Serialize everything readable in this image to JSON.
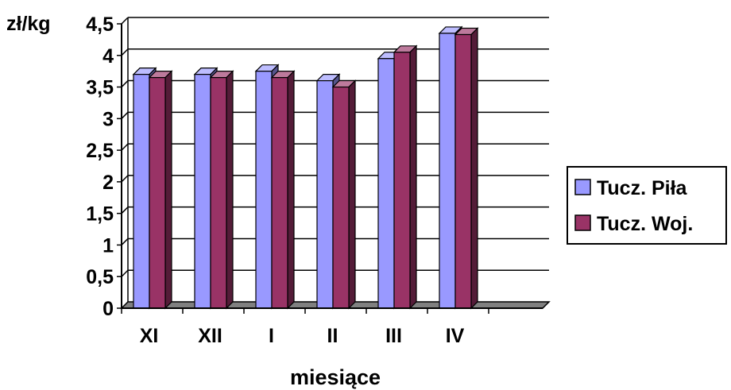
{
  "chart_data": {
    "type": "bar",
    "title": "",
    "ylabel": "zł/kg",
    "xlabel": "miesiące",
    "categories": [
      "XI",
      "XII",
      "I",
      "II",
      "III",
      "IV"
    ],
    "series": [
      {
        "name": "Tucz. Piła",
        "values": [
          3.7,
          3.7,
          3.75,
          3.6,
          3.95,
          4.35
        ],
        "color": "#9999ff"
      },
      {
        "name": "Tucz. Woj.",
        "values": [
          3.65,
          3.65,
          3.65,
          3.5,
          4.05,
          4.33
        ],
        "color": "#993366"
      }
    ],
    "ylim": [
      0,
      4.5
    ],
    "yticks": [
      "0",
      "0,5",
      "1",
      "1,5",
      "2",
      "2,5",
      "3",
      "3,5",
      "4",
      "4,5"
    ],
    "grid": true,
    "legend_position": "right",
    "style": "3d-clustered-column"
  }
}
